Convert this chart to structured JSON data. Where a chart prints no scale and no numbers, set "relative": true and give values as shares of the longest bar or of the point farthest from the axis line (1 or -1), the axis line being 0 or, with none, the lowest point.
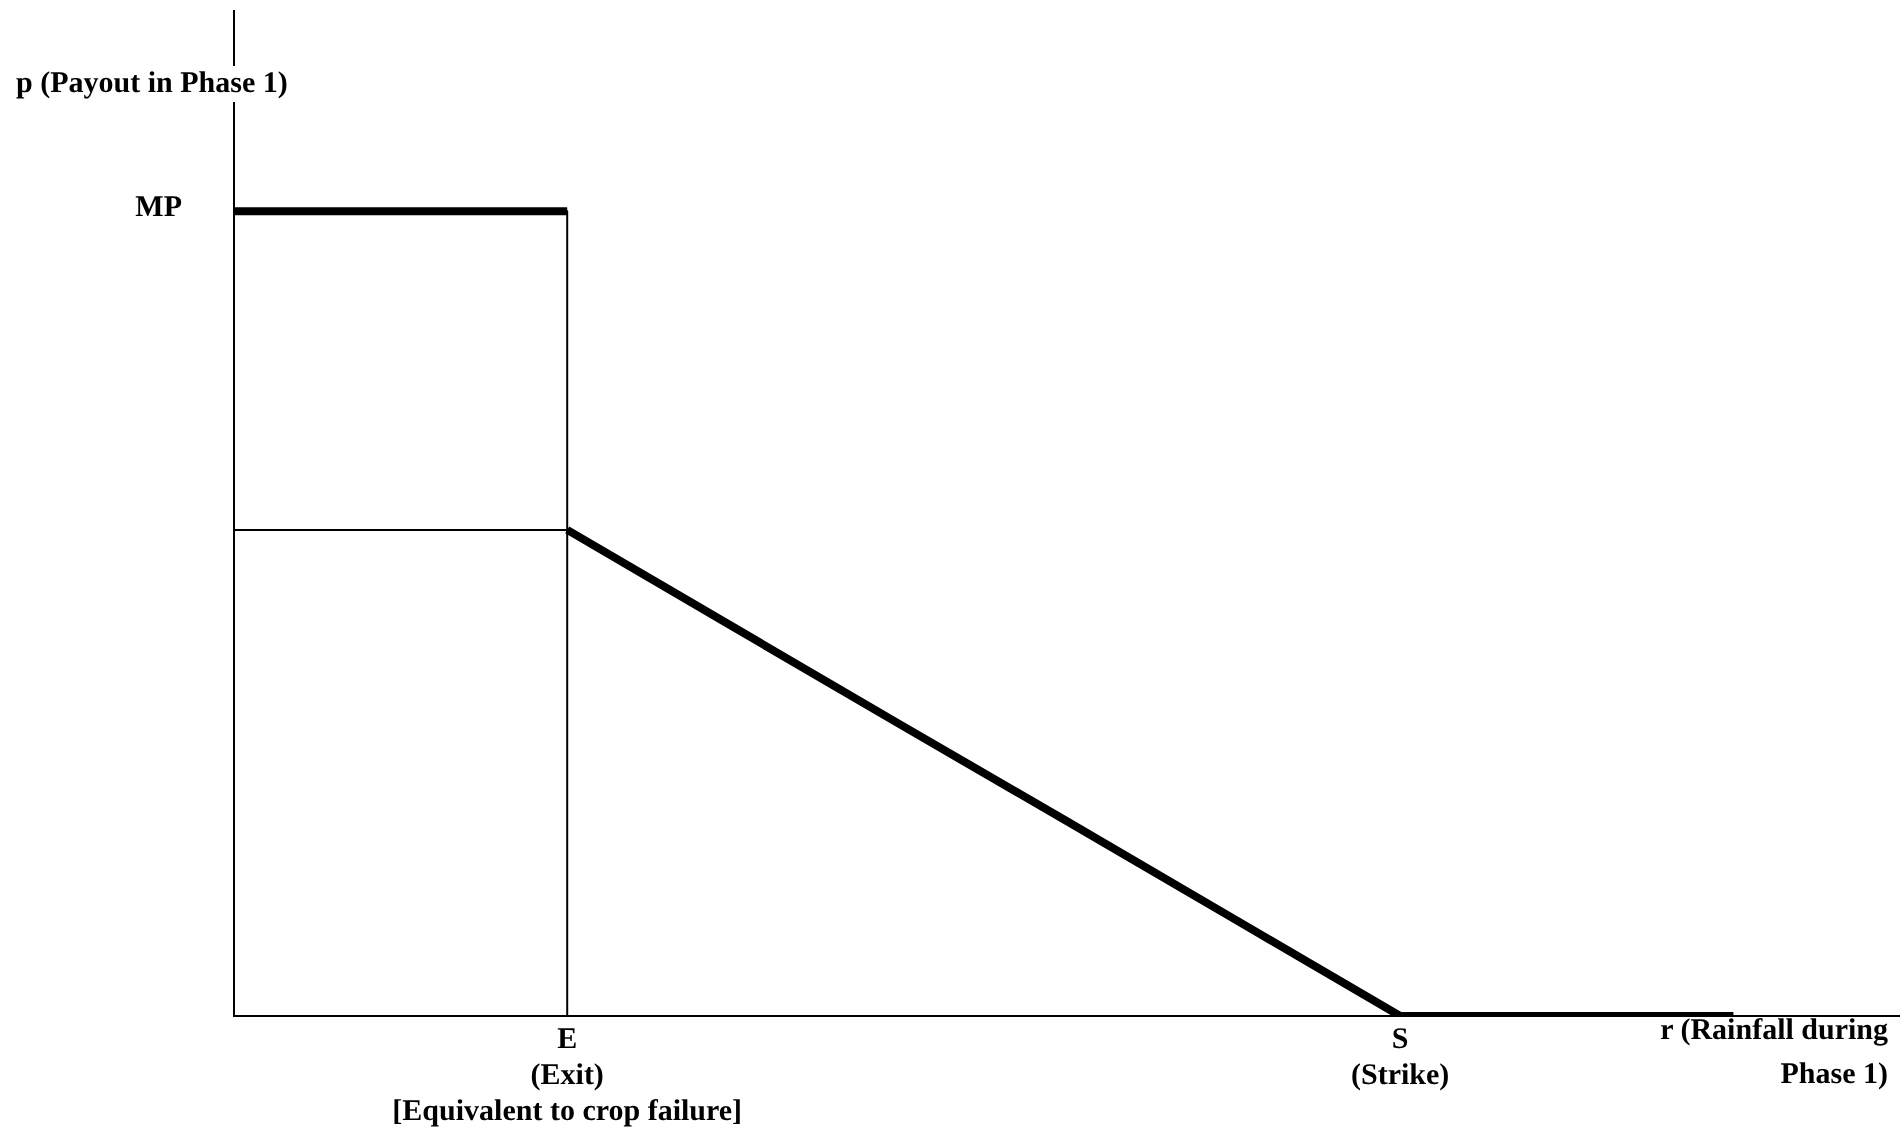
{
  "chart_data": {
    "type": "line",
    "relative": true,
    "marker": "none",
    "xlabel": "r (Rainfall during\nPhase 1)",
    "ylabel": "p (Payout in Phase 1)",
    "categories": [
      null,
      null,
      "E\n(Exit)\n[Equivalent to crop failure]",
      null,
      null,
      null,
      null,
      "S\n(Strike)",
      null,
      null,
      null
    ],
    "series": [
      {
        "color": "#000000",
        "values": [
          1,
          1,
          1,
          null,
          null,
          null,
          null,
          null,
          null,
          null,
          null
        ]
      },
      {
        "color": "#000000",
        "values": [
          null,
          null,
          0.604,
          0.483,
          0.362,
          0.242,
          0.121,
          0,
          0,
          0,
          null
        ]
      },
      {
        "color": "#000000",
        "x": [
          "E\n(Exit)\n[Equivalent to crop failure]",
          "E\n(Exit)\n[Equivalent to crop failure]"
        ],
        "values": [
          1,
          0
        ]
      },
      {
        "color": "#000000",
        "values": [
          0.604,
          0.604,
          0.604,
          null,
          null,
          null,
          null,
          null,
          null,
          null,
          null
        ]
      }
    ],
    "annotations": [
      "MP"
    ]
  }
}
